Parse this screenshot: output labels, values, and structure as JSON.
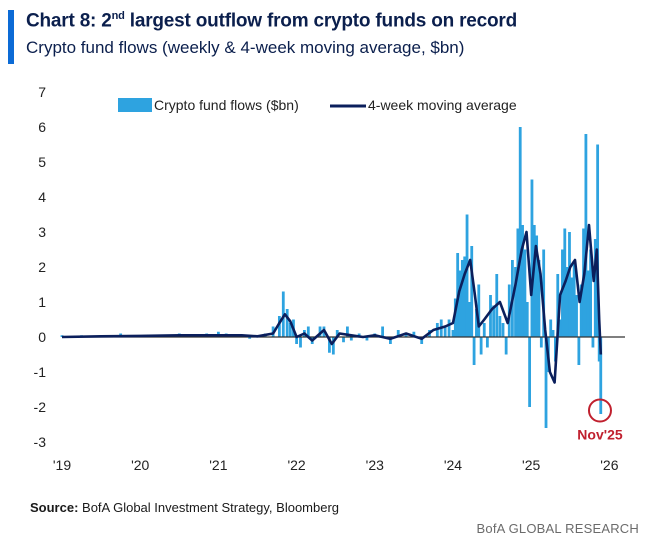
{
  "title": {
    "prefix": "Chart 8: 2",
    "superscript": "nd",
    "suffix": " largest outflow from crypto funds on record"
  },
  "subtitle": "Crypto fund flows (weekly & 4-week moving average, $bn)",
  "source": {
    "label": "Source:",
    "text": " BofA Global Investment Strategy, Bloomberg"
  },
  "footer": "BofA GLOBAL RESEARCH",
  "colors": {
    "bars": "#2ea3e0",
    "line": "#0b1f5c",
    "annotation": "#c0202e",
    "axis": "#333333"
  },
  "chart_data": {
    "type": "bar",
    "ylim": [
      -3,
      7
    ],
    "yticks": [
      "7",
      "6",
      "5",
      "4",
      "3",
      "2",
      "1",
      "0",
      "-1",
      "-2",
      "-3"
    ],
    "xticks": [
      "'19",
      "'20",
      "'21",
      "'22",
      "'23",
      "'24",
      "'25",
      "'26"
    ],
    "legend": {
      "position": "top",
      "bars_label": "Crypto fund flows ($bn)",
      "line_label": "4-week moving average"
    },
    "annotation": {
      "text": "Nov'25",
      "x": 2025.88,
      "y": -2.1
    },
    "series": [
      {
        "name": "Crypto fund flows ($bn)",
        "kind": "bar",
        "x": [
          2019.0,
          2019.25,
          2019.5,
          2019.75,
          2020.0,
          2020.25,
          2020.5,
          2020.75,
          2020.85,
          2021.0,
          2021.1,
          2021.2,
          2021.3,
          2021.4,
          2021.5,
          2021.6,
          2021.7,
          2021.78,
          2021.83,
          2021.88,
          2021.92,
          2021.96,
          2022.0,
          2022.05,
          2022.1,
          2022.15,
          2022.2,
          2022.3,
          2022.35,
          2022.42,
          2022.47,
          2022.52,
          2022.6,
          2022.65,
          2022.7,
          2022.8,
          2022.9,
          2023.0,
          2023.1,
          2023.2,
          2023.3,
          2023.4,
          2023.5,
          2023.6,
          2023.7,
          2023.8,
          2023.85,
          2023.9,
          2023.95,
          2024.0,
          2024.03,
          2024.06,
          2024.09,
          2024.12,
          2024.15,
          2024.18,
          2024.21,
          2024.24,
          2024.27,
          2024.3,
          2024.33,
          2024.36,
          2024.4,
          2024.44,
          2024.48,
          2024.52,
          2024.56,
          2024.6,
          2024.64,
          2024.68,
          2024.72,
          2024.76,
          2024.8,
          2024.83,
          2024.86,
          2024.89,
          2024.92,
          2024.95,
          2024.98,
          2025.01,
          2025.04,
          2025.07,
          2025.1,
          2025.13,
          2025.16,
          2025.19,
          2025.22,
          2025.25,
          2025.28,
          2025.31,
          2025.34,
          2025.37,
          2025.4,
          2025.43,
          2025.46,
          2025.49,
          2025.52,
          2025.55,
          2025.58,
          2025.61,
          2025.64,
          2025.67,
          2025.7,
          2025.73,
          2025.76,
          2025.79,
          2025.82,
          2025.85,
          2025.87,
          2025.89
        ],
        "values": [
          0.05,
          0.05,
          0.05,
          0.1,
          0.05,
          0.05,
          0.1,
          0.05,
          0.1,
          0.15,
          0.1,
          0.05,
          0.05,
          -0.05,
          0.05,
          0.1,
          0.3,
          0.6,
          1.3,
          0.8,
          0.4,
          0.5,
          -0.2,
          -0.3,
          0.2,
          0.3,
          -0.2,
          0.3,
          0.3,
          -0.45,
          -0.5,
          0.2,
          -0.15,
          0.3,
          -0.1,
          0.1,
          -0.1,
          0.1,
          0.3,
          -0.2,
          0.2,
          0.1,
          0.15,
          -0.2,
          0.2,
          0.4,
          0.5,
          0.3,
          0.5,
          0.2,
          1.1,
          2.4,
          1.9,
          2.2,
          2.3,
          3.5,
          1.0,
          2.6,
          -0.8,
          0.8,
          1.5,
          -0.5,
          0.4,
          -0.3,
          1.2,
          0.9,
          1.8,
          0.6,
          0.4,
          -0.5,
          1.5,
          2.2,
          2.0,
          3.1,
          6.0,
          3.2,
          2.5,
          1.0,
          -2.0,
          4.5,
          3.2,
          2.9,
          2.2,
          -0.3,
          2.5,
          -2.6,
          -1.0,
          0.5,
          0.2,
          -0.7,
          1.8,
          0.5,
          2.5,
          3.1,
          2.0,
          3.0,
          1.7,
          2.1,
          1.2,
          -0.8,
          1.5,
          3.1,
          5.8,
          1.9,
          2.5,
          -0.3,
          2.8,
          5.5,
          -0.7,
          -2.2
        ]
      },
      {
        "name": "4-week moving average",
        "kind": "line",
        "x": [
          2019.0,
          2019.5,
          2020.0,
          2020.5,
          2021.0,
          2021.3,
          2021.5,
          2021.7,
          2021.78,
          2021.85,
          2021.92,
          2022.0,
          2022.1,
          2022.2,
          2022.35,
          2022.45,
          2022.55,
          2022.7,
          2022.85,
          2023.0,
          2023.2,
          2023.4,
          2023.6,
          2023.75,
          2023.9,
          2024.0,
          2024.08,
          2024.15,
          2024.22,
          2024.28,
          2024.33,
          2024.4,
          2024.5,
          2024.6,
          2024.7,
          2024.8,
          2024.88,
          2024.94,
          2025.0,
          2025.06,
          2025.12,
          2025.18,
          2025.24,
          2025.3,
          2025.37,
          2025.44,
          2025.5,
          2025.56,
          2025.62,
          2025.68,
          2025.74,
          2025.8,
          2025.84,
          2025.87,
          2025.89
        ],
        "values": [
          0.0,
          0.02,
          0.03,
          0.05,
          0.05,
          0.05,
          0.02,
          0.1,
          0.4,
          0.65,
          0.45,
          0.0,
          0.1,
          -0.1,
          0.2,
          -0.2,
          0.1,
          0.05,
          0.0,
          0.05,
          -0.05,
          0.1,
          -0.05,
          0.2,
          0.3,
          0.4,
          1.3,
          1.8,
          2.2,
          1.2,
          0.3,
          0.5,
          0.8,
          1.0,
          0.4,
          1.5,
          2.5,
          3.0,
          1.2,
          2.6,
          1.8,
          0.2,
          -1.0,
          -1.3,
          1.2,
          1.6,
          2.0,
          2.2,
          1.0,
          1.8,
          3.2,
          1.6,
          2.5,
          0.5,
          -0.5
        ]
      }
    ]
  }
}
